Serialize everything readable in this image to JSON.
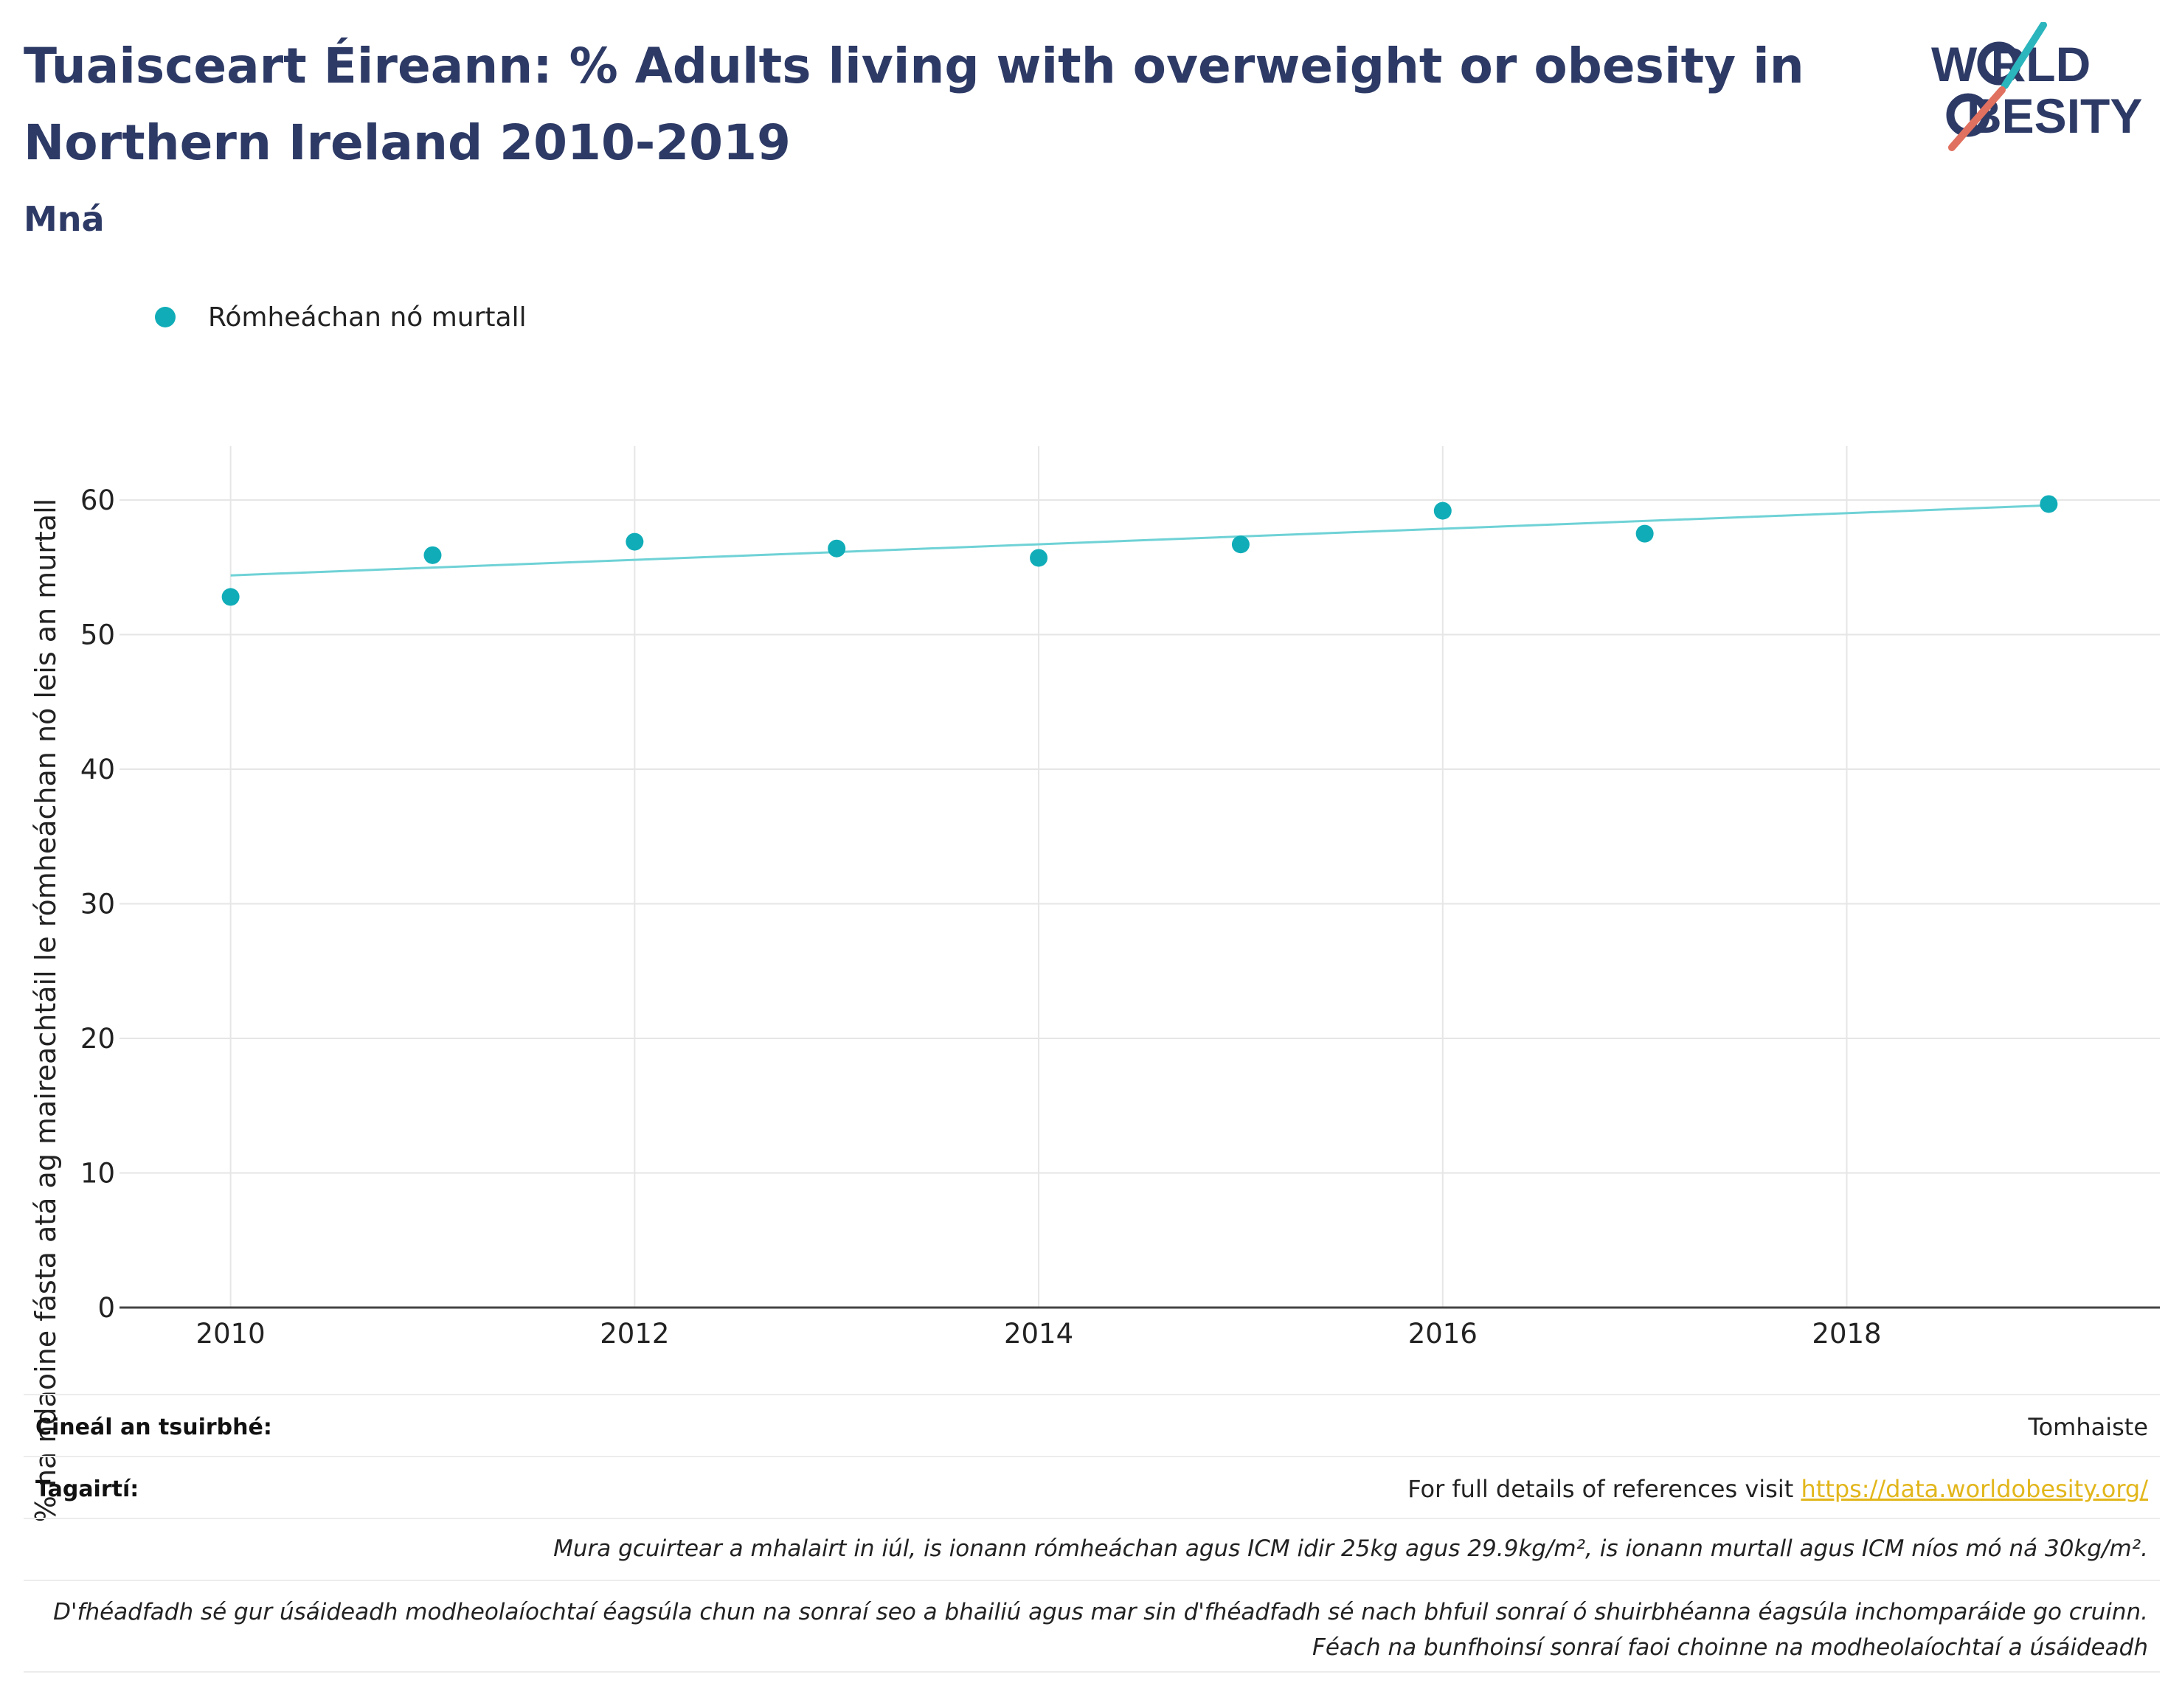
{
  "header": {
    "title": "Tuaisceart Éireann: % Adults living with overweight or obesity in Northern Ireland 2010-2019",
    "subtitle": "Mná"
  },
  "logo": {
    "line1": "W RLD",
    "line2": "BESITY",
    "text": "WORLD OBESITY",
    "colors": {
      "text": "#2d3a66",
      "slash_teal": "#2bb5bd",
      "slash_red": "#e0705f"
    }
  },
  "legend": {
    "label": "Rómheáchan nó murtall"
  },
  "colors": {
    "accent": "#10adb8",
    "trend": "#6fd2d6",
    "title": "#2d3a66",
    "grid": "#e6e6e6",
    "axis": "#444444",
    "link": "#e2b61b"
  },
  "chart_data": {
    "type": "scatter",
    "title": "Tuaisceart Éireann: % Adults living with overweight or obesity in Northern Ireland 2010-2019",
    "subtitle": "Mná",
    "xlabel": "",
    "ylabel": "% na ndaoine fásta atá ag maireachtáil le rómheáchan nó leis an murtall",
    "xlim": [
      2009.45,
      2019.55
    ],
    "ylim": [
      0,
      64
    ],
    "x_ticks": [
      2010,
      2012,
      2014,
      2016,
      2018
    ],
    "y_ticks": [
      0,
      10,
      20,
      30,
      40,
      50,
      60
    ],
    "grid": true,
    "legend_position": "top-left",
    "series": [
      {
        "name": "Rómheáchan nó murtall",
        "x": [
          2010,
          2011,
          2012,
          2013,
          2014,
          2015,
          2016,
          2017,
          2019
        ],
        "values": [
          52.8,
          55.9,
          56.9,
          56.4,
          55.7,
          56.7,
          59.2,
          57.5,
          59.7
        ]
      }
    ],
    "trendline": {
      "x": [
        2010,
        2019
      ],
      "values": [
        54.4,
        59.6
      ]
    }
  },
  "meta": {
    "survey_type_label": "Cineál an tsuirbhé:",
    "survey_type_value": "Tomhaiste",
    "references_label": "Tagairtí:",
    "references_text": "For full details of references visit ",
    "references_link": "https://data.worldobesity.org/",
    "note1": "Mura gcuirtear a mhalairt in iúl, is ionann rómheáchan agus ICM idir 25kg agus 29.9kg/m², is ionann murtall agus ICM níos mó ná 30kg/m².",
    "note2_line1": "D'fhéadfadh sé gur úsáideadh modheolaíochtaí éagsúla chun na sonraí seo a bhailiú agus mar sin d'fhéadfadh sé nach bhfuil sonraí ó shuirbhéanna éagsúla inchomparáide go cruinn.",
    "note2_line2": "Féach na bunfhoinsí sonraí faoi choinne na modheolaíochtaí a úsáideadh"
  }
}
